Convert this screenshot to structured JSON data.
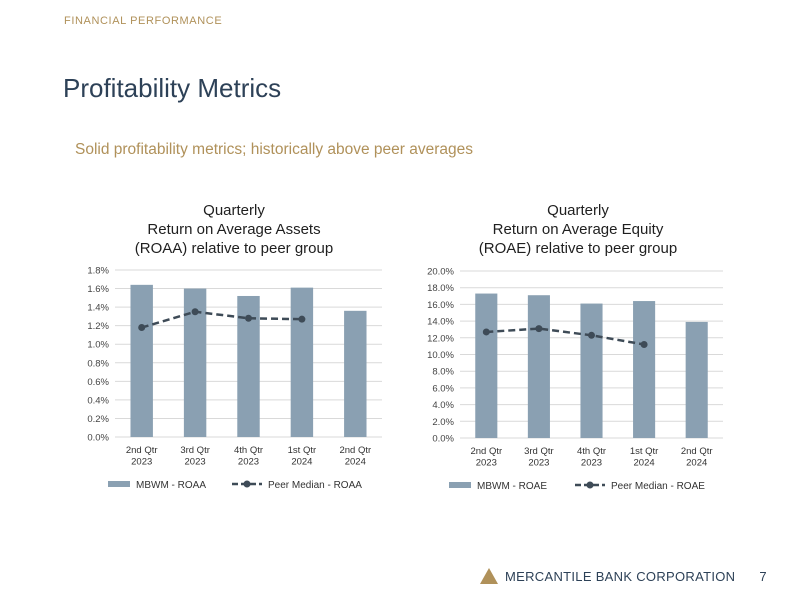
{
  "header": {
    "section_label": "FINANCIAL PERFORMANCE",
    "title": "Profitability Metrics",
    "subtitle": "Solid profitability metrics; historically above peer averages"
  },
  "colors": {
    "bar": "#8aa0b2",
    "peer_line": "#3e4b57",
    "accent": "#b0915a",
    "title": "#2d4157"
  },
  "chart_data": [
    {
      "type": "bar",
      "title_lines": [
        "Quarterly",
        "Return on Average Assets",
        "(ROAA) relative to peer group"
      ],
      "categories": [
        [
          "2nd Qtr",
          "2023"
        ],
        [
          "3rd Qtr",
          "2023"
        ],
        [
          "4th Qtr",
          "2023"
        ],
        [
          "1st Qtr",
          "2024"
        ],
        [
          "2nd Qtr",
          "2024"
        ]
      ],
      "series": [
        {
          "name": "MBWM -  ROAA",
          "kind": "bar",
          "values": [
            1.64,
            1.6,
            1.52,
            1.61,
            1.36
          ]
        },
        {
          "name": "Peer Median - ROAA",
          "kind": "line-dashed",
          "values": [
            1.18,
            1.35,
            1.28,
            1.27,
            null
          ]
        }
      ],
      "ylim": [
        0,
        1.8
      ],
      "yticks": [
        "0.0%",
        "0.2%",
        "0.4%",
        "0.6%",
        "0.8%",
        "1.0%",
        "1.2%",
        "1.4%",
        "1.6%",
        "1.8%"
      ],
      "grid": true,
      "legend": "bottom"
    },
    {
      "type": "bar",
      "title_lines": [
        "Quarterly",
        "Return on Average Equity",
        "(ROAE) relative to peer group"
      ],
      "categories": [
        [
          "2nd Qtr",
          "2023"
        ],
        [
          "3rd Qtr",
          "2023"
        ],
        [
          "4th Qtr",
          "2023"
        ],
        [
          "1st Qtr",
          "2024"
        ],
        [
          "2nd Qtr",
          "2024"
        ]
      ],
      "series": [
        {
          "name": "MBWM -  ROAE",
          "kind": "bar",
          "values": [
            17.3,
            17.1,
            16.1,
            16.4,
            13.9
          ]
        },
        {
          "name": "Peer Median - ROAE",
          "kind": "line-dashed",
          "values": [
            12.7,
            13.1,
            12.3,
            11.2,
            null
          ]
        }
      ],
      "ylim": [
        0,
        20
      ],
      "yticks": [
        "0.0%",
        "2.0%",
        "4.0%",
        "6.0%",
        "8.0%",
        "10.0%",
        "12.0%",
        "14.0%",
        "16.0%",
        "18.0%",
        "20.0%"
      ],
      "grid": true,
      "legend": "bottom"
    }
  ],
  "footer": {
    "company": "MERCANTILE BANK CORPORATION",
    "page_number": "7",
    "logo_icon": "triangle-logo-icon"
  }
}
